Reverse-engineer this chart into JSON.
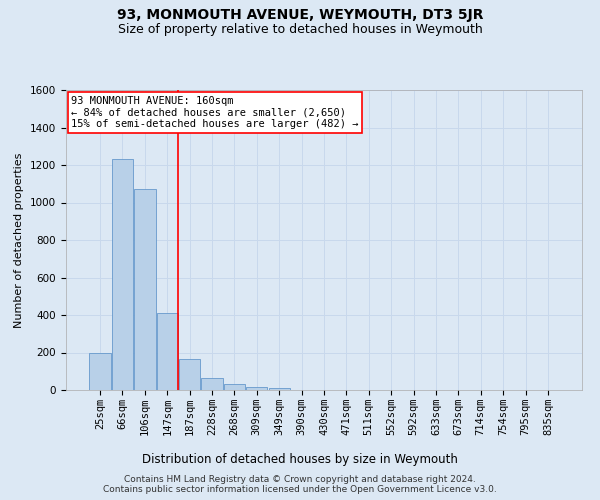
{
  "title": "93, MONMOUTH AVENUE, WEYMOUTH, DT3 5JR",
  "subtitle": "Size of property relative to detached houses in Weymouth",
  "xlabel": "Distribution of detached houses by size in Weymouth",
  "ylabel": "Number of detached properties",
  "categories": [
    "25sqm",
    "66sqm",
    "106sqm",
    "147sqm",
    "187sqm",
    "228sqm",
    "268sqm",
    "309sqm",
    "349sqm",
    "390sqm",
    "430sqm",
    "471sqm",
    "511sqm",
    "552sqm",
    "592sqm",
    "633sqm",
    "673sqm",
    "714sqm",
    "754sqm",
    "795sqm",
    "835sqm"
  ],
  "values": [
    200,
    1230,
    1070,
    410,
    165,
    65,
    30,
    17,
    10,
    0,
    0,
    0,
    0,
    0,
    0,
    0,
    0,
    0,
    0,
    0,
    0
  ],
  "bar_color": "#b8d0e8",
  "bar_edge_color": "#6699cc",
  "annotation_text": "93 MONMOUTH AVENUE: 160sqm\n← 84% of detached houses are smaller (2,650)\n15% of semi-detached houses are larger (482) →",
  "annotation_box_color": "white",
  "annotation_box_edge_color": "red",
  "vline_color": "red",
  "vline_x": 3.5,
  "ylim": [
    0,
    1600
  ],
  "yticks": [
    0,
    200,
    400,
    600,
    800,
    1000,
    1200,
    1400,
    1600
  ],
  "grid_color": "#c8d8ec",
  "background_color": "#dce8f4",
  "footer_text": "Contains HM Land Registry data © Crown copyright and database right 2024.\nContains public sector information licensed under the Open Government Licence v3.0.",
  "title_fontsize": 10,
  "subtitle_fontsize": 9,
  "xlabel_fontsize": 8.5,
  "ylabel_fontsize": 8,
  "tick_fontsize": 7.5,
  "annotation_fontsize": 7.5,
  "footer_fontsize": 6.5
}
